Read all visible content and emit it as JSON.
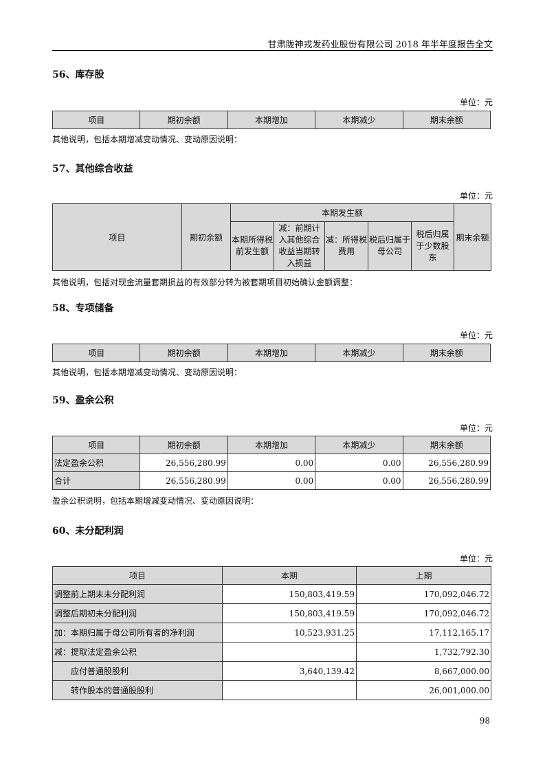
{
  "header": "甘肃陇神戎发药业股份有限公司 2018 年半年度报告全文",
  "unit": "单位：元",
  "s56": {
    "title": "56、库存股",
    "cols": [
      "项目",
      "期初余额",
      "本期增加",
      "本期减少",
      "期末余额"
    ],
    "note": "其他说明，包括本期增减变动情况、变动原因说明："
  },
  "s57": {
    "title": "57、其他综合收益",
    "item": "项目",
    "open": "期初余额",
    "group": "本期发生额",
    "sub": [
      "本期所得税前发生额",
      "减：前期计入其他综合收益当期转入损益",
      "减：所得税费用",
      "税后归属于母公司",
      "税后归属于少数股东"
    ],
    "close": "期末余额",
    "note": "其他说明，包括对现金流量套期损益的有效部分转为被套期项目初始确认金额调整："
  },
  "s58": {
    "title": "58、专项储备",
    "cols": [
      "项目",
      "期初余额",
      "本期增加",
      "本期减少",
      "期末余额"
    ],
    "note": "其他说明，包括本期增减变动情况、变动原因说明："
  },
  "s59": {
    "title": "59、盈余公积",
    "cols": [
      "项目",
      "期初余额",
      "本期增加",
      "本期减少",
      "期末余额"
    ],
    "rows": [
      [
        "法定盈余公积",
        "26,556,280.99",
        "0.00",
        "0.00",
        "26,556,280.99"
      ],
      [
        "合计",
        "26,556,280.99",
        "0.00",
        "0.00",
        "26,556,280.99"
      ]
    ],
    "note": "盈余公积说明，包括本期增减变动情况、变动原因说明："
  },
  "s60": {
    "title": "60、未分配利润",
    "cols": [
      "项目",
      "本期",
      "上期"
    ],
    "rows": [
      [
        "调整前上期末未分配利润",
        "150,803,419.59",
        "170,092,046.72"
      ],
      [
        "调整后期初未分配利润",
        "150,803,419.59",
        "170,092,046.72"
      ],
      [
        "加：本期归属于母公司所有者的净利润",
        "10,523,931.25",
        "17,112,165.17"
      ],
      [
        "减：提取法定盈余公积",
        "",
        "1,732,792.30"
      ],
      [
        "应付普通股股利",
        "3,640,139.42",
        "8,667,000.00"
      ],
      [
        "转作股本的普通股股利",
        "",
        "26,001,000.00"
      ]
    ]
  },
  "page_number": "98"
}
